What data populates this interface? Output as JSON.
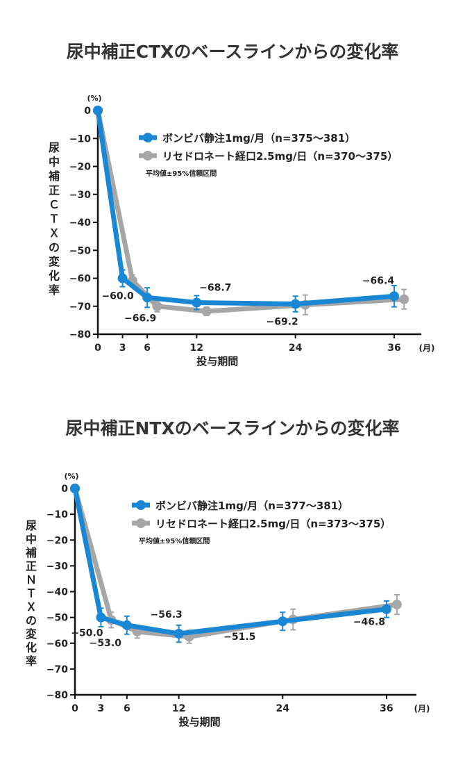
{
  "charts_titles": [
    "尿中補正CTXのベースラインからの変化率",
    "尿中補正NTXのベースラインからの変化率"
  ],
  "chart_data": [
    {
      "type": "line",
      "title": "尿中補正CTXのベースラインからの変化率",
      "ylabel": "尿中補正ＣＴＸの変化率",
      "yunit": "(%)",
      "xlabel": "投与期間",
      "xunit": "(月)",
      "ylim": [
        -80,
        0
      ],
      "yticks": [
        0,
        -10,
        -20,
        -30,
        -40,
        -50,
        -60,
        -70,
        -80
      ],
      "ytick_labels": [
        "0",
        "−10",
        "−20",
        "−30",
        "−40",
        "−50",
        "−60",
        "−70",
        "−80"
      ],
      "xticks": [
        0,
        3,
        6,
        12,
        24,
        36
      ],
      "xtick_labels": [
        "0",
        "3",
        "6",
        "12",
        "24",
        "36"
      ],
      "note": "平均値±95%信頼区間",
      "series": [
        {
          "name": "ボンビバ静注1mg/月（n=375〜381）",
          "color": "#1a87d5",
          "x": [
            0,
            3,
            6,
            12,
            24,
            36
          ],
          "y": [
            0,
            -60.0,
            -66.9,
            -68.7,
            -69.2,
            -66.4
          ],
          "ci": [
            0,
            3,
            3.5,
            2.5,
            2.8,
            3.8
          ],
          "labels": [
            "",
            "−60.0",
            "−66.9",
            "−68.7",
            "−69.2",
            "−66.4"
          ]
        },
        {
          "name": "リセドロネート経口2.5mg/日（n=370〜375）",
          "color": "#a6a6a6",
          "x": [
            0,
            3,
            6,
            12,
            24,
            36
          ],
          "y": [
            0,
            -60.8,
            -70.0,
            -71.8,
            -69.5,
            -67.5
          ],
          "ci": [
            0,
            2,
            2,
            1.5,
            3.5,
            3.5
          ]
        }
      ]
    },
    {
      "type": "line",
      "title": "尿中補正NTXのベースラインからの変化率",
      "ylabel": "尿中補正ＮＴＸの変化率",
      "yunit": "(%)",
      "xlabel": "投与期間",
      "xunit": "(月)",
      "ylim": [
        -80,
        0
      ],
      "yticks": [
        0,
        -10,
        -20,
        -30,
        -40,
        -50,
        -60,
        -70,
        -80
      ],
      "ytick_labels": [
        "0",
        "−10",
        "−20",
        "−30",
        "−40",
        "−50",
        "−60",
        "−70",
        "−80"
      ],
      "xticks": [
        0,
        3,
        6,
        12,
        24,
        36
      ],
      "xtick_labels": [
        "0",
        "3",
        "6",
        "12",
        "24",
        "36"
      ],
      "note": "平均値±95%信頼区間",
      "series": [
        {
          "name": "ボンビバ静注1mg/月（n=377〜381）",
          "color": "#1a87d5",
          "x": [
            0,
            3,
            6,
            12,
            24,
            36
          ],
          "y": [
            0,
            -50.0,
            -53.0,
            -56.3,
            -51.5,
            -46.8
          ],
          "ci": [
            0,
            3.6,
            3.5,
            3.3,
            3.5,
            3.2
          ],
          "labels": [
            "",
            "−50.0",
            "−53.0",
            "−56.3",
            "−51.5",
            "−46.8"
          ]
        },
        {
          "name": "リセドロネート経口2.5mg/日（n=373〜375）",
          "color": "#a6a6a6",
          "x": [
            0,
            3,
            6,
            12,
            24,
            36
          ],
          "y": [
            0,
            -51.0,
            -55.5,
            -57.5,
            -50.8,
            -45.0
          ],
          "ci": [
            0,
            3,
            2.5,
            2.5,
            4,
            3.8
          ]
        }
      ]
    }
  ]
}
